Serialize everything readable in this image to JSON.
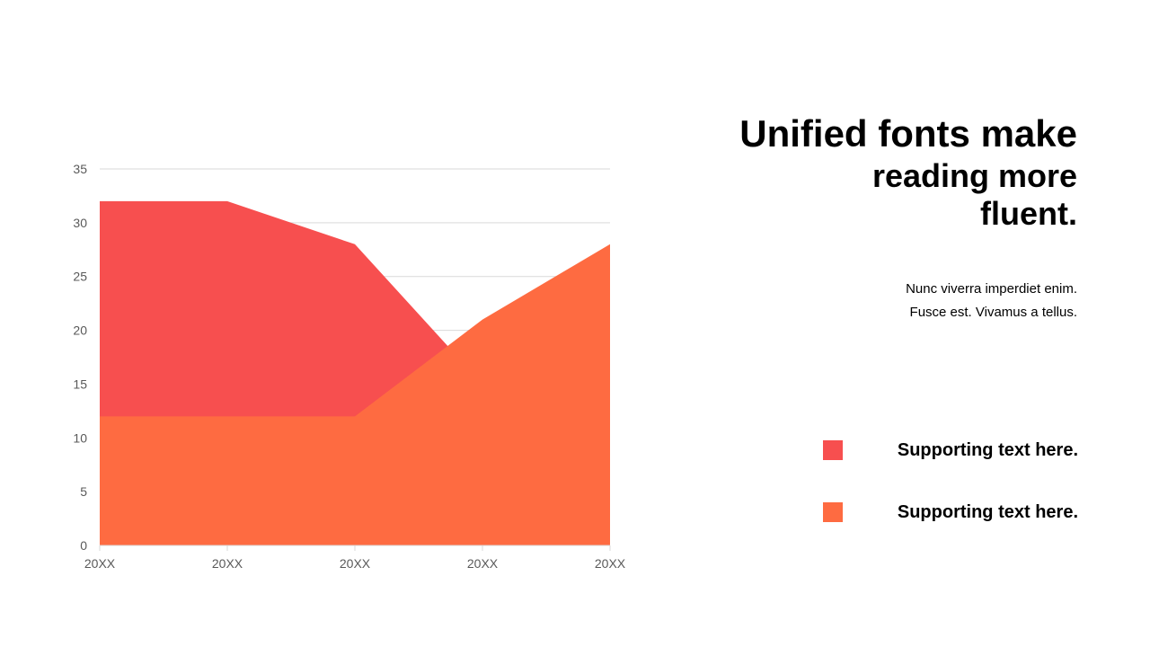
{
  "heading": {
    "line1": "Unified fonts make",
    "line2": "reading more",
    "line3": "fluent."
  },
  "body": {
    "line1": "Nunc viverra imperdiet enim.",
    "line2": "Fusce est. Vivamus a tellus."
  },
  "legend": [
    {
      "label": "Supporting text here.",
      "color": "#f74f4f"
    },
    {
      "label": "Supporting text here.",
      "color": "#fe6b41"
    }
  ],
  "chart_data": {
    "type": "area",
    "categories": [
      "20XX",
      "20XX",
      "20XX",
      "20XX",
      "20XX"
    ],
    "series": [
      {
        "values": [
          32,
          32,
          28,
          15,
          13
        ],
        "color": "#f74f4f"
      },
      {
        "values": [
          12,
          12,
          12,
          21,
          28
        ],
        "color": "#fe6b41"
      }
    ],
    "ylim": [
      0,
      35
    ],
    "yticks": [
      0,
      5,
      10,
      15,
      20,
      25,
      30,
      35
    ],
    "grid": true,
    "gridColor": "#d9d9d9",
    "axisColor": "#d9d9d9"
  }
}
